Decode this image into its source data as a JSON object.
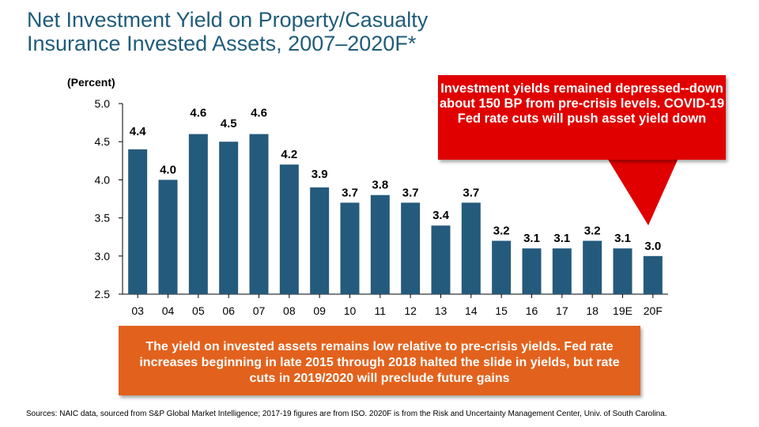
{
  "title_lines": [
    "Net Investment Yield on Property/Casualty",
    "Insurance Invested Assets, 2007–2020F*"
  ],
  "unit_label": "(Percent)",
  "callout_text": "Investment yields remained depressed--down about 150 BP from pre-crisis levels.  COVID-19 Fed rate cuts will push asset yield down",
  "note_text": "The yield on invested assets remains low relative to pre-crisis yields. Fed rate increases beginning in late 2015 through 2018 halted the slide in yields, but  rate cuts in 2019/2020 will preclude future gains",
  "sources": "Sources: NAIC data, sourced from S&P Global Market Intelligence; 2017-19 figures are from ISO.  2020F is from the Risk and Uncertainty Management Center, Univ. of South Carolina.",
  "colors": {
    "bar": "#245a7c",
    "title": "#1f5c7a",
    "callout": "#e00000",
    "note": "#e2621d"
  },
  "chart_data": {
    "type": "bar",
    "title": "Net Investment Yield on Property/Casualty Insurance Invested Assets, 2007–2020F*",
    "xlabel": "",
    "ylabel": "(Percent)",
    "categories": [
      "03",
      "04",
      "05",
      "06",
      "07",
      "08",
      "09",
      "10",
      "11",
      "12",
      "13",
      "14",
      "15",
      "16",
      "17",
      "18",
      "19E",
      "20F"
    ],
    "values": [
      4.4,
      4.0,
      4.6,
      4.5,
      4.6,
      4.2,
      3.9,
      3.7,
      3.8,
      3.7,
      3.4,
      3.7,
      3.2,
      3.1,
      3.1,
      3.2,
      3.1,
      3.0
    ],
    "labels": [
      "4.4",
      "4.0",
      "4.6",
      "4.5",
      "4.6",
      "4.2",
      "3.9",
      "3.7",
      "3.8",
      "3.7",
      "3.4",
      "3.7",
      "3.2",
      "3.1",
      "3.1",
      "3.2",
      "3.1",
      "3.0"
    ],
    "ylim": [
      2.5,
      5.0
    ],
    "yticks": [
      "5.0",
      "4.5",
      "4.0",
      "3.5",
      "3.0",
      "2.5"
    ],
    "yticks_values": [
      5.0,
      4.5,
      4.0,
      3.5,
      3.0,
      2.5
    ],
    "grid": false,
    "legend": "none"
  }
}
